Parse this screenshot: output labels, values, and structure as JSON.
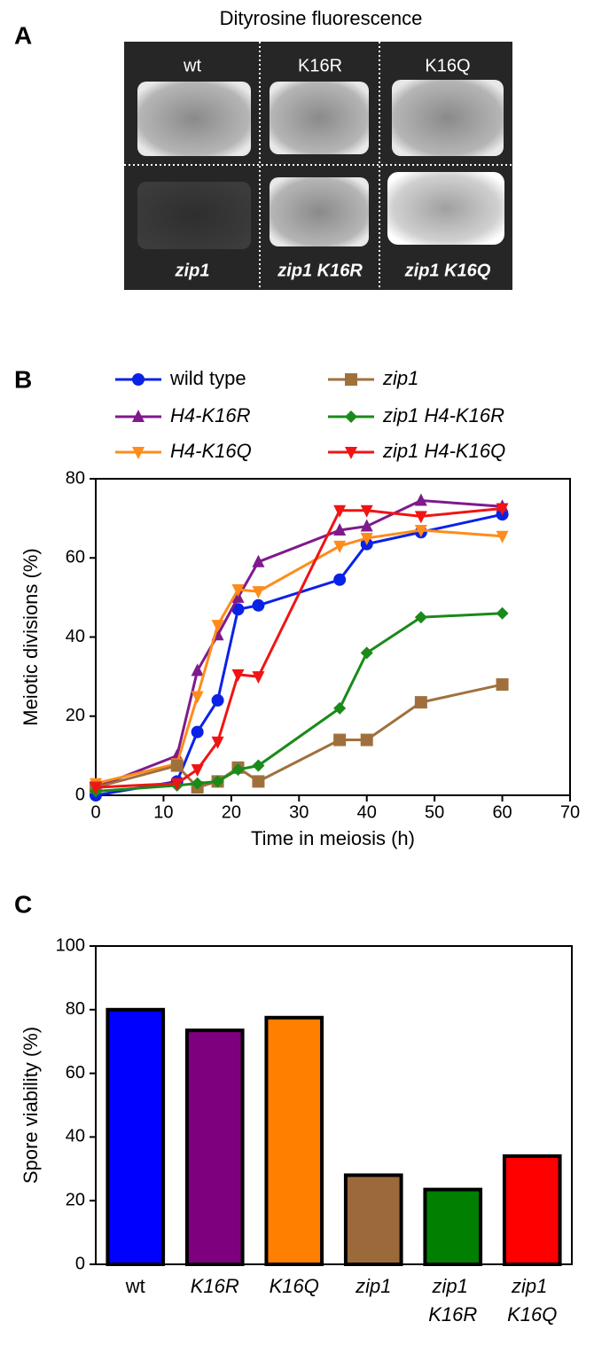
{
  "panel_a": {
    "label": "A",
    "title": "Dityrosine fluorescence",
    "images": [
      "wt",
      "K16R",
      "K16Q",
      "zip1",
      "zip1 K16R",
      "zip1 K16Q"
    ]
  },
  "chart_data": [
    {
      "type": "line",
      "panel_label": "B",
      "x_label": "Time in meiosis (h)",
      "y_label": "Meiotic divisions (%)",
      "x": [
        0,
        12,
        15,
        18,
        21,
        24,
        36,
        40,
        48,
        60
      ],
      "series": [
        {
          "name": "wild type",
          "color": "#0a22e6",
          "marker": "circle",
          "values": [
            0,
            3.5,
            16,
            24,
            47,
            48,
            54.5,
            63.5,
            66.5,
            71
          ]
        },
        {
          "name": "H4-K16R",
          "color": "#7f1a8c",
          "marker": "triangle-up",
          "values": [
            2,
            10,
            31.5,
            40.5,
            50,
            59,
            67,
            68,
            74.5,
            73
          ]
        },
        {
          "name": "H4-K16Q",
          "color": "#ff8c1a",
          "marker": "triangle-down",
          "values": [
            3,
            8,
            25,
            43,
            52,
            51.5,
            63,
            65,
            67,
            65.5
          ]
        },
        {
          "name": "zip1",
          "color": "#a0703c",
          "marker": "square",
          "values": [
            2,
            7.5,
            2,
            3.5,
            7,
            3.5,
            14,
            14,
            23.5,
            28
          ]
        },
        {
          "name": "zip1 H4-K16R",
          "color": "#1a8a1a",
          "marker": "diamond",
          "values": [
            1,
            2.5,
            3,
            3.5,
            6.5,
            7.5,
            22,
            36,
            45,
            46
          ]
        },
        {
          "name": "zip1 H4-K16Q",
          "color": "#f01414",
          "marker": "triangle-down",
          "values": [
            2,
            3,
            6.5,
            13.5,
            30.5,
            30,
            72,
            72,
            70.5,
            72.5
          ]
        }
      ],
      "xlim": [
        0,
        70
      ],
      "xticks": [
        0,
        10,
        20,
        30,
        40,
        50,
        60,
        70
      ],
      "ylim": [
        0,
        80
      ],
      "yticks": [
        0,
        20,
        40,
        60,
        80
      ]
    },
    {
      "type": "bar",
      "panel_label": "C",
      "y_label": "Spore viability (%)",
      "categories": [
        "wt",
        "K16R",
        "K16Q",
        "zip1",
        "zip1 K16R",
        "zip1 K16Q"
      ],
      "values": [
        80,
        73.5,
        77.5,
        28,
        23.5,
        34
      ],
      "colors": [
        "#0000ff",
        "#7f007f",
        "#ff7f00",
        "#9c6a3a",
        "#007f00",
        "#ff0000"
      ],
      "ylim": [
        0,
        100
      ],
      "yticks": [
        0,
        20,
        40,
        60,
        80,
        100
      ]
    }
  ]
}
